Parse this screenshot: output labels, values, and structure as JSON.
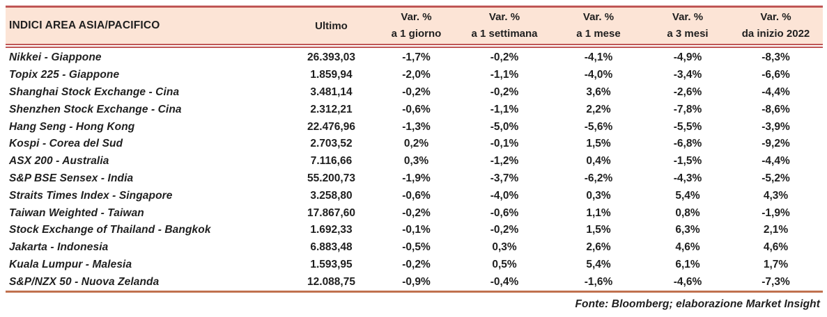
{
  "colors": {
    "header_fill": "#fce4d6",
    "border_red": "#bf5655",
    "border_sienna": "#c0714e",
    "text": "#1f1f1f"
  },
  "table": {
    "title": "INDICI AREA ASIA/PACIFICO",
    "header": {
      "ultimo": "Ultimo",
      "var_label": "Var. %",
      "periods": [
        "a 1 giorno",
        "a 1 settimana",
        "a 1 mese",
        "a 3 mesi",
        "da inizio 2022"
      ]
    },
    "rows": [
      {
        "name": "Nikkei - Giappone",
        "ultimo": "26.393,03",
        "d1": "-1,7%",
        "w1": "-0,2%",
        "m1": "-4,1%",
        "m3": "-4,9%",
        "ytd": "-8,3%"
      },
      {
        "name": "Topix 225 - Giappone",
        "ultimo": "1.859,94",
        "d1": "-2,0%",
        "w1": "-1,1%",
        "m1": "-4,0%",
        "m3": "-3,4%",
        "ytd": "-6,6%"
      },
      {
        "name": "Shanghai Stock Exchange - Cina",
        "ultimo": "3.481,14",
        "d1": "-0,2%",
        "w1": "-0,2%",
        "m1": "3,6%",
        "m3": "-2,6%",
        "ytd": "-4,4%"
      },
      {
        "name": "Shenzhen Stock Exchange - Cina",
        "ultimo": "2.312,21",
        "d1": "-0,6%",
        "w1": "-1,1%",
        "m1": "2,2%",
        "m3": "-7,8%",
        "ytd": "-8,6%"
      },
      {
        "name": "Hang Seng - Hong Kong",
        "ultimo": "22.476,96",
        "d1": "-1,3%",
        "w1": "-5,0%",
        "m1": "-5,6%",
        "m3": "-5,5%",
        "ytd": "-3,9%"
      },
      {
        "name": "Kospi - Corea del Sud",
        "ultimo": "2.703,52",
        "d1": "0,2%",
        "w1": "-0,1%",
        "m1": "1,5%",
        "m3": "-6,8%",
        "ytd": "-9,2%"
      },
      {
        "name": "ASX 200 - Australia",
        "ultimo": "7.116,66",
        "d1": "0,3%",
        "w1": "-1,2%",
        "m1": "0,4%",
        "m3": "-1,5%",
        "ytd": "-4,4%"
      },
      {
        "name": "S&P BSE Sensex - India",
        "ultimo": "55.200,73",
        "d1": "-1,9%",
        "w1": "-3,7%",
        "m1": "-6,2%",
        "m3": "-4,3%",
        "ytd": "-5,2%"
      },
      {
        "name": "Straits Times Index - Singapore",
        "ultimo": "3.258,80",
        "d1": "-0,6%",
        "w1": "-4,0%",
        "m1": "0,3%",
        "m3": "5,4%",
        "ytd": "4,3%"
      },
      {
        "name": "Taiwan Weighted - Taiwan",
        "ultimo": "17.867,60",
        "d1": "-0,2%",
        "w1": "-0,6%",
        "m1": "1,1%",
        "m3": "0,8%",
        "ytd": "-1,9%"
      },
      {
        "name": "Stock Exchange of Thailand - Bangkok",
        "ultimo": "1.692,33",
        "d1": "-0,1%",
        "w1": "-0,2%",
        "m1": "1,5%",
        "m3": "6,3%",
        "ytd": "2,1%"
      },
      {
        "name": "Jakarta - Indonesia",
        "ultimo": "6.883,48",
        "d1": "-0,5%",
        "w1": "0,3%",
        "m1": "2,6%",
        "m3": "4,6%",
        "ytd": "4,6%"
      },
      {
        "name": "Kuala Lumpur - Malesia",
        "ultimo": "1.593,95",
        "d1": "-0,2%",
        "w1": "0,5%",
        "m1": "5,4%",
        "m3": "6,1%",
        "ytd": "1,7%"
      },
      {
        "name": "S&P/NZX 50 - Nuova Zelanda",
        "ultimo": "12.088,75",
        "d1": "-0,9%",
        "w1": "-0,4%",
        "m1": "-1,6%",
        "m3": "-4,6%",
        "ytd": "-7,3%"
      }
    ],
    "footer": "Fonte: Bloomberg; elaborazione Market Insight"
  }
}
